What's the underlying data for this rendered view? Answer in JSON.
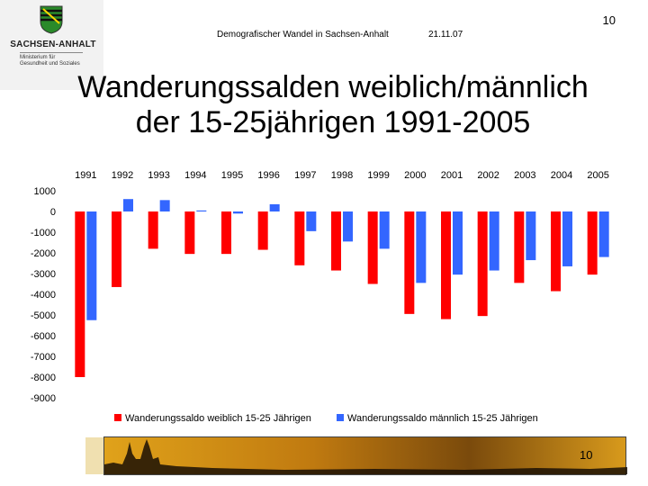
{
  "logo": {
    "name": "SACHSEN-ANHALT",
    "sub_lines": [
      "Ministerium für",
      "Gesundheit und Soziales"
    ]
  },
  "header": {
    "topic": "Demografischer Wandel in Sachsen-Anhalt",
    "date": "21.11.07",
    "page_number": "10"
  },
  "footer": {
    "page_number": "10"
  },
  "colors": {
    "female": "#ff0000",
    "male": "#3366ff",
    "footer": "#c07a10"
  },
  "chart_data": {
    "type": "bar",
    "title": "Wanderungssalden weiblich/männlich der 15-25jährigen 1991-2005",
    "title_lines": [
      "Wanderungssalden weiblich/männlich",
      "der 15-25jährigen 1991-2005"
    ],
    "categories": [
      "1991",
      "1992",
      "1993",
      "1994",
      "1995",
      "1996",
      "1997",
      "1998",
      "1999",
      "2000",
      "2001",
      "2002",
      "2003",
      "2004",
      "2005"
    ],
    "series": [
      {
        "name": "Wanderungssaldo weiblich 15-25 Jährigen",
        "color": "#ff0000",
        "values": [
          -8000,
          -3650,
          -1800,
          -2050,
          -2050,
          -1850,
          -2600,
          -2850,
          -3500,
          -4950,
          -5200,
          -5050,
          -3450,
          -3850,
          -3050
        ]
      },
      {
        "name": "Wanderungssaldo männlich 15-25 Jährigen",
        "color": "#3366ff",
        "values": [
          -5250,
          600,
          550,
          50,
          -100,
          350,
          -950,
          -1450,
          -1800,
          -3450,
          -3050,
          -2850,
          -2350,
          -2650,
          -2200
        ]
      }
    ],
    "y_ticks": [
      "1000",
      "0",
      "-1000",
      "-2000",
      "-3000",
      "-4000",
      "-5000",
      "-6000",
      "-7000",
      "-8000",
      "-9000"
    ],
    "y_tick_values": [
      1000,
      0,
      -1000,
      -2000,
      -3000,
      -4000,
      -5000,
      -6000,
      -7000,
      -8000,
      -9000
    ],
    "ylim": [
      -9000,
      1000
    ],
    "xlabel": "",
    "ylabel": "",
    "legend_position": "bottom",
    "category_axis_position": "top"
  }
}
